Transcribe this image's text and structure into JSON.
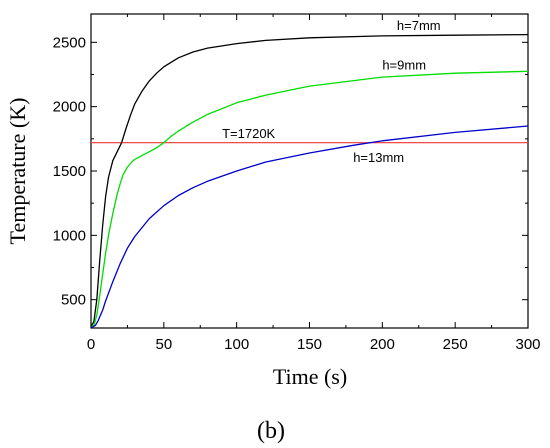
{
  "chart_data": {
    "type": "line",
    "xlabel": "Time (s)",
    "ylabel": "Temperature (K)",
    "xlim": [
      0,
      300
    ],
    "ylim": [
      280,
      2720
    ],
    "x_ticks": [
      0,
      50,
      100,
      150,
      200,
      250,
      300
    ],
    "y_ticks": [
      500,
      1000,
      1500,
      2000,
      2500
    ],
    "grid": false,
    "legend": "none",
    "series": [
      {
        "name": "h=7mm",
        "color": "#000000",
        "x": [
          0,
          2,
          4,
          6,
          8,
          10,
          12,
          15,
          18,
          21,
          24,
          27,
          30,
          35,
          40,
          45,
          50,
          60,
          70,
          80,
          100,
          120,
          150,
          200,
          250,
          300
        ],
        "y": [
          290,
          330,
          500,
          800,
          1080,
          1300,
          1450,
          1580,
          1650,
          1720,
          1830,
          1930,
          2020,
          2120,
          2200,
          2260,
          2310,
          2380,
          2425,
          2455,
          2490,
          2515,
          2535,
          2550,
          2555,
          2560
        ]
      },
      {
        "name": "h=9mm",
        "color": "#00dd00",
        "x": [
          0,
          2,
          4,
          6,
          8,
          10,
          12,
          15,
          18,
          20,
          22,
          25,
          28,
          30,
          35,
          40,
          45,
          50,
          55,
          60,
          70,
          80,
          100,
          120,
          150,
          200,
          250,
          300
        ],
        "y": [
          290,
          300,
          380,
          530,
          700,
          860,
          1000,
          1170,
          1320,
          1400,
          1470,
          1530,
          1570,
          1590,
          1620,
          1650,
          1680,
          1720,
          1770,
          1810,
          1880,
          1940,
          2030,
          2090,
          2160,
          2230,
          2260,
          2275
        ]
      },
      {
        "name": "h=13mm",
        "color": "#0000cc",
        "x": [
          0,
          3,
          5,
          8,
          10,
          15,
          20,
          25,
          30,
          40,
          50,
          60,
          70,
          80,
          100,
          120,
          150,
          180,
          200,
          250,
          300
        ],
        "y": [
          280,
          300,
          340,
          420,
          490,
          640,
          780,
          900,
          990,
          1130,
          1230,
          1310,
          1370,
          1420,
          1500,
          1570,
          1640,
          1700,
          1735,
          1800,
          1850
        ]
      }
    ],
    "reference_line": {
      "y": 1720,
      "color": "#ee3333"
    },
    "annotations": [
      {
        "text": "h=7mm",
        "x": 210,
        "y": 2595
      },
      {
        "text": "h=9mm",
        "x": 200,
        "y": 2290
      },
      {
        "text": "T=1720K",
        "x": 90,
        "y": 1755
      },
      {
        "text": "h=13mm",
        "x": 180,
        "y": 1570
      }
    ],
    "panel_label": "(b)"
  }
}
